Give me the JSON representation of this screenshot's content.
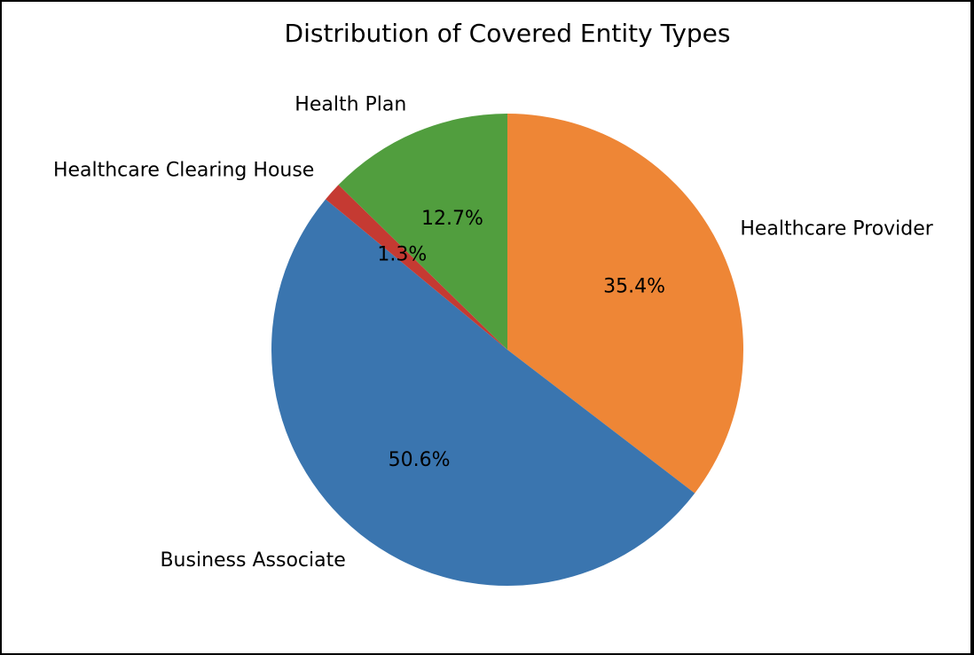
{
  "chart_data": {
    "type": "pie",
    "title": "Distribution of Covered Entity Types",
    "start_angle_deg": 90,
    "direction": "clockwise",
    "slices": [
      {
        "name": "Healthcare Provider",
        "value": 35.4,
        "label": "35.4%",
        "color": "#EE8636"
      },
      {
        "name": "Business Associate",
        "value": 50.6,
        "label": "50.6%",
        "color": "#3A75AF"
      },
      {
        "name": "Healthcare Clearing House",
        "value": 1.3,
        "label": "1.3%",
        "color": "#C53A32"
      },
      {
        "name": "Health Plan",
        "value": 12.7,
        "label": "12.7%",
        "color": "#519E3E"
      }
    ],
    "legend": "none",
    "grid": false
  }
}
